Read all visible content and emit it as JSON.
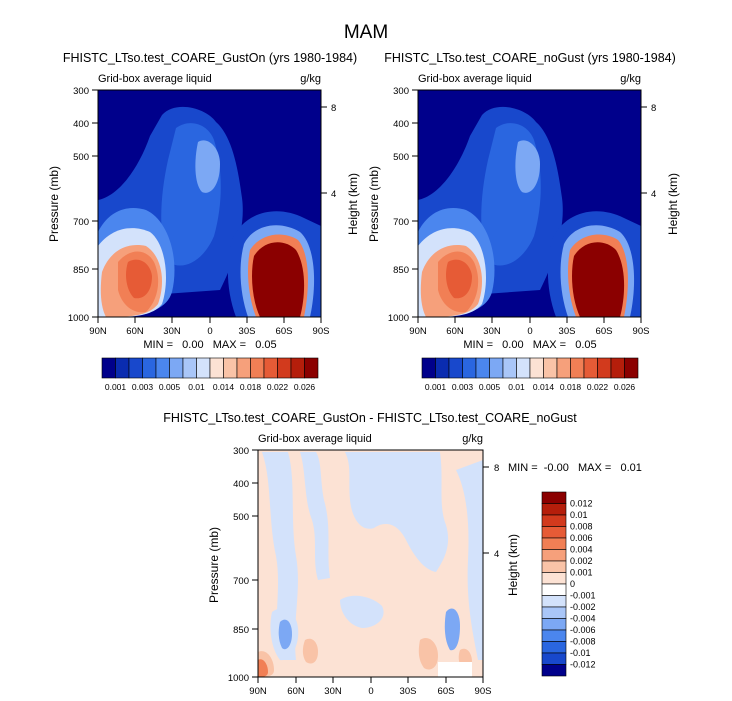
{
  "figure_title": "MAM",
  "chart_data": [
    {
      "type": "heatmap",
      "title": "FHISTC_LTso.test_COARE_GustOn (yrs 1980-1984)",
      "subtitle_left": "Grid-box average liquid",
      "subtitle_right": "g/kg",
      "ylabel": "Pressure (mb)",
      "ylabel_right": "Height (km)",
      "x_ticks": [
        "90N",
        "60N",
        "30N",
        "0",
        "30S",
        "60S",
        "90S"
      ],
      "y_ticks": [
        "300",
        "400",
        "500",
        "700",
        "850",
        "1000"
      ],
      "y_right_ticks": [
        "8",
        "4"
      ],
      "stats_text": "MIN =   0.00   MAX =   0.05",
      "colorbar": {
        "orientation": "horizontal",
        "levels": [
          0.001,
          0.002,
          0.003,
          0.004,
          0.005,
          0.0075,
          0.01,
          0.012,
          0.014,
          0.016,
          0.018,
          0.02,
          0.022,
          0.024,
          0.026
        ],
        "labels": [
          "0.001",
          "0.003",
          "0.005",
          "0.01",
          "0.014",
          "0.018",
          "0.022",
          "0.026"
        ],
        "colors": [
          "#00008B",
          "#0A2CB0",
          "#1848CC",
          "#2A66E0",
          "#4B86EE",
          "#7CA8F4",
          "#A9C6F8",
          "#D3E2FB",
          "#FCE2D4",
          "#F9C3A7",
          "#F6A07B",
          "#F17F55",
          "#E65B36",
          "#D23A1D",
          "#B51E0B",
          "#8B0000"
        ]
      }
    },
    {
      "type": "heatmap",
      "title": "FHISTC_LTso.test_COARE_noGust (yrs 1980-1984)",
      "subtitle_left": "Grid-box average liquid",
      "subtitle_right": "g/kg",
      "ylabel": "Pressure (mb)",
      "ylabel_right": "Height (km)",
      "x_ticks": [
        "90N",
        "60N",
        "30N",
        "0",
        "30S",
        "60S",
        "90S"
      ],
      "y_ticks": [
        "300",
        "400",
        "500",
        "700",
        "850",
        "1000"
      ],
      "y_right_ticks": [
        "8",
        "4"
      ],
      "stats_text": "MIN =   0.00   MAX =   0.05",
      "colorbar": {
        "orientation": "horizontal",
        "levels": [
          0.001,
          0.002,
          0.003,
          0.004,
          0.005,
          0.0075,
          0.01,
          0.012,
          0.014,
          0.016,
          0.018,
          0.02,
          0.022,
          0.024,
          0.026
        ],
        "labels": [
          "0.001",
          "0.003",
          "0.005",
          "0.01",
          "0.014",
          "0.018",
          "0.022",
          "0.026"
        ],
        "colors": [
          "#00008B",
          "#0A2CB0",
          "#1848CC",
          "#2A66E0",
          "#4B86EE",
          "#7CA8F4",
          "#A9C6F8",
          "#D3E2FB",
          "#FCE2D4",
          "#F9C3A7",
          "#F6A07B",
          "#F17F55",
          "#E65B36",
          "#D23A1D",
          "#B51E0B",
          "#8B0000"
        ]
      }
    },
    {
      "type": "heatmap",
      "title": "FHISTC_LTso.test_COARE_GustOn - FHISTC_LTso.test_COARE_noGust",
      "subtitle_left": "Grid-box average liquid",
      "subtitle_right": "g/kg",
      "ylabel": "Pressure (mb)",
      "ylabel_right": "Height (km)",
      "x_ticks": [
        "90N",
        "60N",
        "30N",
        "0",
        "30S",
        "60S",
        "90S"
      ],
      "y_ticks": [
        "300",
        "400",
        "500",
        "700",
        "850",
        "1000"
      ],
      "y_right_ticks": [
        "8",
        "4"
      ],
      "stats_text": "MIN =  -0.00   MAX =   0.01",
      "colorbar": {
        "orientation": "vertical",
        "labels": [
          "0.012",
          "0.01",
          "0.008",
          "0.006",
          "0.004",
          "0.002",
          "0.001",
          "0",
          "-0.001",
          "-0.002",
          "-0.004",
          "-0.006",
          "-0.008",
          "-0.01",
          "-0.012"
        ],
        "colors": [
          "#8B0000",
          "#B51E0B",
          "#D23A1D",
          "#E65B36",
          "#F17F55",
          "#F6A07B",
          "#F9C3A7",
          "#FCE2D4",
          "#FFFFFF",
          "#D3E2FB",
          "#A9C6F8",
          "#7CA8F4",
          "#4B86EE",
          "#2A66E0",
          "#1848CC",
          "#00008B"
        ]
      }
    }
  ]
}
